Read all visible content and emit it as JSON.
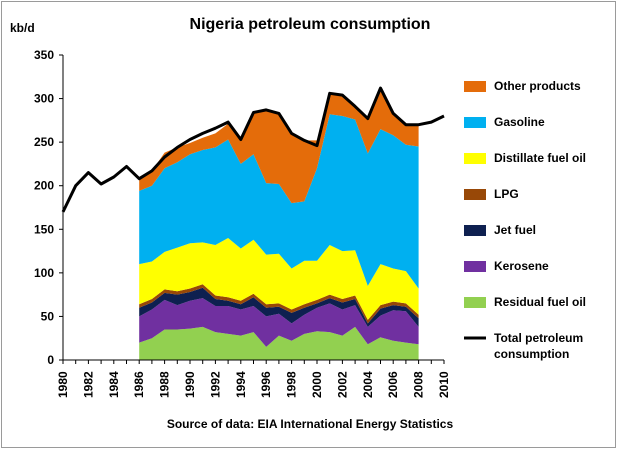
{
  "chart_data": {
    "type": "area",
    "title": "Nigeria petroleum consumption",
    "ylabel": "kb/d",
    "xlabel": "",
    "source": "Source of data: EIA  International Energy Statistics",
    "ylim": [
      0,
      350
    ],
    "xlim": [
      1980,
      2010
    ],
    "yticks": [
      "0",
      "50",
      "100",
      "150",
      "200",
      "250",
      "300",
      "350"
    ],
    "xticks": [
      "1980",
      "1982",
      "1984",
      "1986",
      "1988",
      "1990",
      "1992",
      "1994",
      "1996",
      "1998",
      "2000",
      "2002",
      "2004",
      "2006",
      "2008",
      "2010"
    ],
    "grid": false,
    "legend": "right",
    "x_area": [
      1986,
      1987,
      1988,
      1989,
      1990,
      1991,
      1992,
      1993,
      1994,
      1995,
      1996,
      1997,
      1998,
      1999,
      2000,
      2001,
      2002,
      2003,
      2004,
      2005,
      2006,
      2007,
      2008
    ],
    "stack": [
      {
        "name": "Residual fuel oil",
        "color": "#92d050",
        "values": [
          20,
          25,
          35,
          35,
          36,
          38,
          32,
          30,
          28,
          32,
          15,
          28,
          22,
          30,
          33,
          32,
          28,
          38,
          18,
          26,
          22,
          20,
          18
        ]
      },
      {
        "name": "Kerosene",
        "color": "#7030a0",
        "values": [
          30,
          33,
          34,
          28,
          32,
          33,
          30,
          32,
          30,
          30,
          35,
          25,
          20,
          22,
          27,
          33,
          30,
          25,
          20,
          25,
          35,
          36,
          20
        ]
      },
      {
        "name": "Jet fuel",
        "color": "#0e2050",
        "values": [
          10,
          8,
          8,
          12,
          10,
          12,
          8,
          6,
          6,
          10,
          10,
          8,
          12,
          8,
          5,
          6,
          8,
          7,
          4,
          8,
          6,
          5,
          10
        ]
      },
      {
        "name": "LPG",
        "color": "#984807",
        "values": [
          4,
          4,
          4,
          4,
          4,
          4,
          4,
          4,
          4,
          4,
          4,
          4,
          4,
          4,
          4,
          4,
          4,
          4,
          4,
          4,
          4,
          4,
          4
        ]
      },
      {
        "name": "Distillate fuel oil",
        "color": "#ffff00",
        "values": [
          46,
          43,
          43,
          50,
          52,
          48,
          58,
          68,
          60,
          62,
          57,
          57,
          47,
          50,
          45,
          57,
          55,
          52,
          39,
          47,
          38,
          37,
          30
        ]
      },
      {
        "name": "Gasoline",
        "color": "#00b0f0",
        "values": [
          84,
          87,
          96,
          98,
          102,
          106,
          112,
          113,
          97,
          98,
          82,
          80,
          75,
          68,
          106,
          150,
          155,
          150,
          152,
          155,
          153,
          145,
          163
        ]
      },
      {
        "name": "Other products",
        "color": "#e46c0a",
        "values": [
          14,
          17,
          18,
          17,
          13,
          14,
          16,
          18,
          28,
          48,
          83,
          81,
          80,
          70,
          32,
          24,
          24,
          15,
          40,
          47,
          25,
          23,
          25
        ]
      }
    ],
    "total": {
      "name": "Total petroleum consumption",
      "color": "#000000",
      "x": [
        1980,
        1981,
        1982,
        1983,
        1984,
        1985,
        1986,
        1987,
        1988,
        1989,
        1990,
        1991,
        1992,
        1993,
        1994,
        1995,
        1996,
        1997,
        1998,
        1999,
        2000,
        2001,
        2002,
        2003,
        2004,
        2005,
        2006,
        2007,
        2008,
        2009,
        2010
      ],
      "values": [
        170,
        200,
        215,
        202,
        210,
        222,
        208,
        217,
        233,
        244,
        253,
        260,
        266,
        273,
        253,
        284,
        287,
        283,
        260,
        252,
        246,
        306,
        304,
        291,
        277,
        312,
        283,
        270,
        270,
        273,
        280
      ]
    },
    "legend_items": [
      {
        "label": "Other products",
        "color": "#e46c0a",
        "kind": "box"
      },
      {
        "label": "Gasoline",
        "color": "#00b0f0",
        "kind": "box"
      },
      {
        "label": "Distillate fuel oil",
        "color": "#ffff00",
        "kind": "box"
      },
      {
        "label": "LPG",
        "color": "#984807",
        "kind": "box"
      },
      {
        "label": "Jet fuel",
        "color": "#0e2050",
        "kind": "box"
      },
      {
        "label": "Kerosene",
        "color": "#7030a0",
        "kind": "box"
      },
      {
        "label": "Residual fuel oil",
        "color": "#92d050",
        "kind": "box"
      },
      {
        "label": "Total petroleum",
        "label2": "consumption",
        "color": "#000000",
        "kind": "line"
      }
    ]
  }
}
